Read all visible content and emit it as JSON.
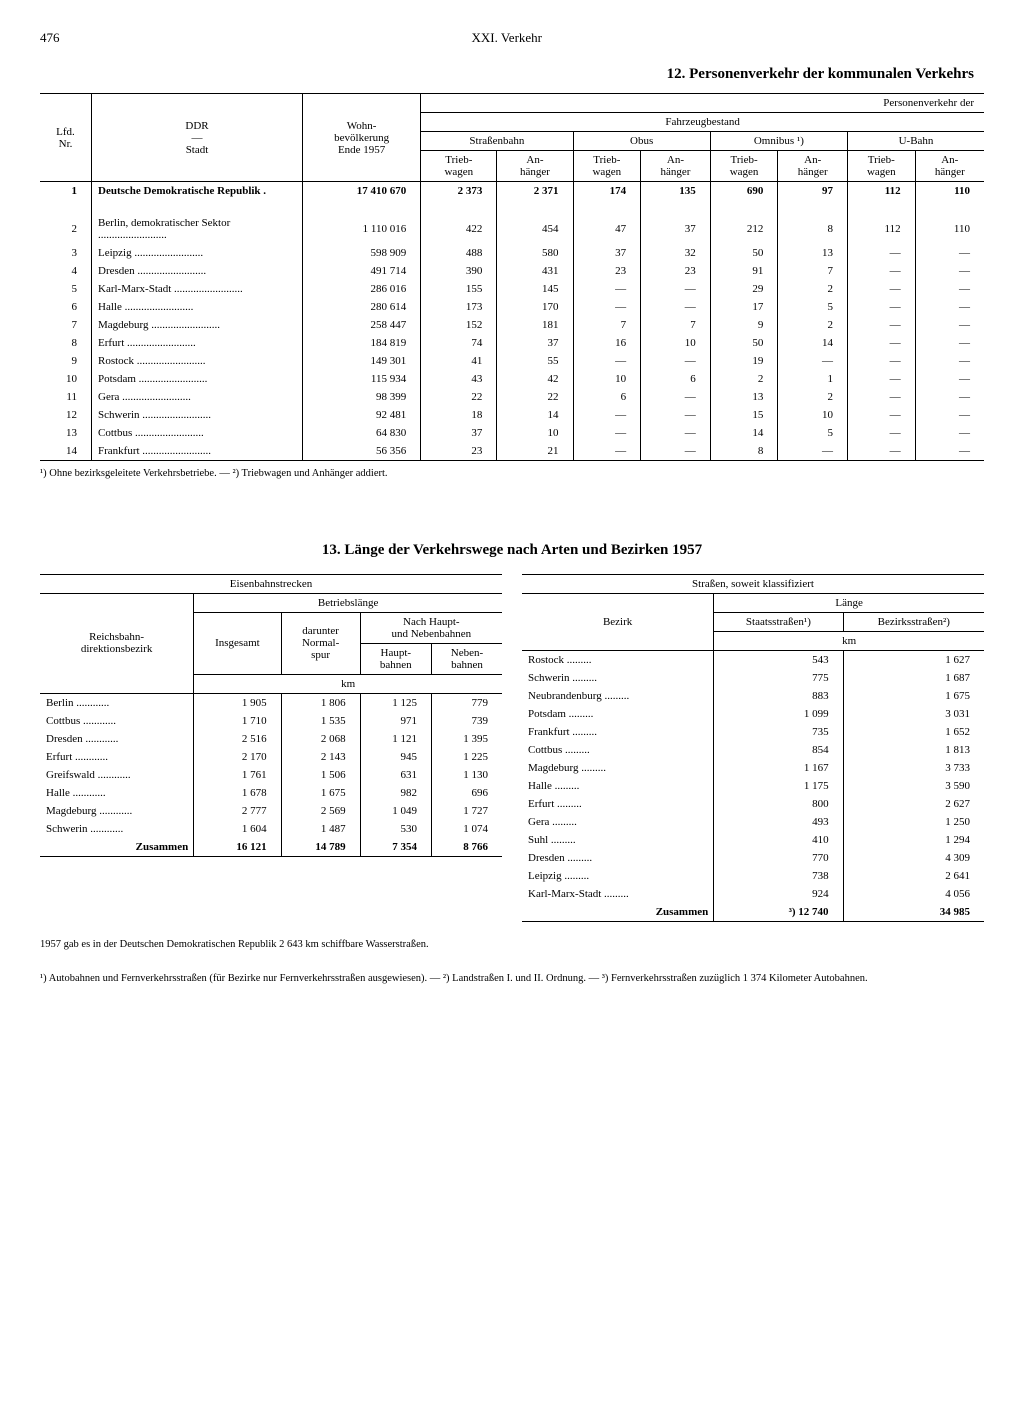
{
  "page_number": "476",
  "chapter": "XXI. Verkehr",
  "section12": {
    "title": "12. Personenverkehr der kommunalen Verkehrs",
    "col_headers": {
      "lfd": "Lfd.\nNr.",
      "ddr_stadt_top": "DDR",
      "ddr_stadt_bottom": "Stadt",
      "wohn": "Wohn-\nbevölkerung\nEnde 1957",
      "pv": "Personenverkehr der",
      "fahrzeug": "Fahrzeugbestand",
      "strassenbahn": "Straßenbahn",
      "obus": "Obus",
      "omnibus": "Omnibus ¹)",
      "ubahn": "U-Bahn",
      "trieb": "Trieb-\nwagen",
      "an": "An-\nhänger"
    },
    "rows": [
      {
        "n": "1",
        "city": "Deutsche Demokratische Republik .",
        "pop": "17 410 670",
        "sb_t": "2 373",
        "sb_a": "2 371",
        "ob_t": "174",
        "ob_a": "135",
        "om_t": "690",
        "om_a": "97",
        "ub_t": "112",
        "ub_a": "110",
        "bold": true
      },
      {
        "n": "2",
        "city": "Berlin, demokratischer Sektor",
        "pop": "1 110 016",
        "sb_t": "422",
        "sb_a": "454",
        "ob_t": "47",
        "ob_a": "37",
        "om_t": "212",
        "om_a": "8",
        "ub_t": "112",
        "ub_a": "110"
      },
      {
        "n": "3",
        "city": "Leipzig",
        "pop": "598 909",
        "sb_t": "488",
        "sb_a": "580",
        "ob_t": "37",
        "ob_a": "32",
        "om_t": "50",
        "om_a": "13",
        "ub_t": "—",
        "ub_a": "—"
      },
      {
        "n": "4",
        "city": "Dresden",
        "pop": "491 714",
        "sb_t": "390",
        "sb_a": "431",
        "ob_t": "23",
        "ob_a": "23",
        "om_t": "91",
        "om_a": "7",
        "ub_t": "—",
        "ub_a": "—"
      },
      {
        "n": "5",
        "city": "Karl-Marx-Stadt",
        "pop": "286 016",
        "sb_t": "155",
        "sb_a": "145",
        "ob_t": "—",
        "ob_a": "—",
        "om_t": "29",
        "om_a": "2",
        "ub_t": "—",
        "ub_a": "—"
      },
      {
        "n": "6",
        "city": "Halle",
        "pop": "280 614",
        "sb_t": "173",
        "sb_a": "170",
        "ob_t": "—",
        "ob_a": "—",
        "om_t": "17",
        "om_a": "5",
        "ub_t": "—",
        "ub_a": "—"
      },
      {
        "n": "7",
        "city": "Magdeburg",
        "pop": "258 447",
        "sb_t": "152",
        "sb_a": "181",
        "ob_t": "7",
        "ob_a": "7",
        "om_t": "9",
        "om_a": "2",
        "ub_t": "—",
        "ub_a": "—"
      },
      {
        "n": "8",
        "city": "Erfurt",
        "pop": "184 819",
        "sb_t": "74",
        "sb_a": "37",
        "ob_t": "16",
        "ob_a": "10",
        "om_t": "50",
        "om_a": "14",
        "ub_t": "—",
        "ub_a": "—"
      },
      {
        "n": "9",
        "city": "Rostock",
        "pop": "149 301",
        "sb_t": "41",
        "sb_a": "55",
        "ob_t": "—",
        "ob_a": "—",
        "om_t": "19",
        "om_a": "—",
        "ub_t": "—",
        "ub_a": "—"
      },
      {
        "n": "10",
        "city": "Potsdam",
        "pop": "115 934",
        "sb_t": "43",
        "sb_a": "42",
        "ob_t": "10",
        "ob_a": "6",
        "om_t": "2",
        "om_a": "1",
        "ub_t": "—",
        "ub_a": "—"
      },
      {
        "n": "11",
        "city": "Gera",
        "pop": "98 399",
        "sb_t": "22",
        "sb_a": "22",
        "ob_t": "6",
        "ob_a": "—",
        "om_t": "13",
        "om_a": "2",
        "ub_t": "—",
        "ub_a": "—"
      },
      {
        "n": "12",
        "city": "Schwerin",
        "pop": "92 481",
        "sb_t": "18",
        "sb_a": "14",
        "ob_t": "—",
        "ob_a": "—",
        "om_t": "15",
        "om_a": "10",
        "ub_t": "—",
        "ub_a": "—"
      },
      {
        "n": "13",
        "city": "Cottbus",
        "pop": "64 830",
        "sb_t": "37",
        "sb_a": "10",
        "ob_t": "—",
        "ob_a": "—",
        "om_t": "14",
        "om_a": "5",
        "ub_t": "—",
        "ub_a": "—"
      },
      {
        "n": "14",
        "city": "Frankfurt",
        "pop": "56 356",
        "sb_t": "23",
        "sb_a": "21",
        "ob_t": "—",
        "ob_a": "—",
        "om_t": "8",
        "om_a": "—",
        "ub_t": "—",
        "ub_a": "—"
      }
    ],
    "footnote": "¹) Ohne bezirksgeleitete Verkehrsbetriebe. — ²) Triebwagen und Anhänger addiert."
  },
  "section13": {
    "title": "13. Länge der Verkehrswege nach Arten und Bezirken 1957",
    "left": {
      "h_eisenbahn": "Eisenbahnstrecken",
      "h_betrieb": "Betriebslänge",
      "h_dir": "Reichsbahn-\ndirektionsbezirk",
      "h_ins": "Insgesamt",
      "h_normal": "darunter\nNormal-\nspur",
      "h_haupt_neben": "Nach Haupt-\nund Nebenbahnen",
      "h_haupt": "Haupt-\nbahnen",
      "h_neben": "Neben-\nbahnen",
      "h_km": "km",
      "rows": [
        {
          "b": "Berlin",
          "i": "1 905",
          "n": "1 806",
          "h": "1 125",
          "nb": "779"
        },
        {
          "b": "Cottbus",
          "i": "1 710",
          "n": "1 535",
          "h": "971",
          "nb": "739"
        },
        {
          "b": "Dresden",
          "i": "2 516",
          "n": "2 068",
          "h": "1 121",
          "nb": "1 395"
        },
        {
          "b": "Erfurt",
          "i": "2 170",
          "n": "2 143",
          "h": "945",
          "nb": "1 225"
        },
        {
          "b": "Greifswald",
          "i": "1 761",
          "n": "1 506",
          "h": "631",
          "nb": "1 130"
        },
        {
          "b": "Halle",
          "i": "1 678",
          "n": "1 675",
          "h": "982",
          "nb": "696"
        },
        {
          "b": "Magdeburg",
          "i": "2 777",
          "n": "2 569",
          "h": "1 049",
          "nb": "1 727"
        },
        {
          "b": "Schwerin",
          "i": "1 604",
          "n": "1 487",
          "h": "530",
          "nb": "1 074"
        }
      ],
      "sum_label": "Zusammen",
      "sum": {
        "i": "16 121",
        "n": "14 789",
        "h": "7 354",
        "nb": "8 766"
      }
    },
    "right": {
      "h_strassen": "Straßen, soweit klassifiziert",
      "h_laenge": "Länge",
      "h_bezirk": "Bezirk",
      "h_staat": "Staatsstraßen¹)",
      "h_bezirkstr": "Bezirksstraßen²)",
      "h_km": "km",
      "rows": [
        {
          "b": "Rostock",
          "s": "543",
          "bz": "1 627"
        },
        {
          "b": "Schwerin",
          "s": "775",
          "bz": "1 687"
        },
        {
          "b": "Neubrandenburg",
          "s": "883",
          "bz": "1 675"
        },
        {
          "b": "Potsdam",
          "s": "1 099",
          "bz": "3 031"
        },
        {
          "b": "Frankfurt",
          "s": "735",
          "bz": "1 652"
        },
        {
          "b": "Cottbus",
          "s": "854",
          "bz": "1 813"
        },
        {
          "b": "Magdeburg",
          "s": "1 167",
          "bz": "3 733"
        },
        {
          "b": "Halle",
          "s": "1 175",
          "bz": "3 590"
        },
        {
          "b": "Erfurt",
          "s": "800",
          "bz": "2 627"
        },
        {
          "b": "Gera",
          "s": "493",
          "bz": "1 250"
        },
        {
          "b": "Suhl",
          "s": "410",
          "bz": "1 294"
        },
        {
          "b": "Dresden",
          "s": "770",
          "bz": "4 309"
        },
        {
          "b": "Leipzig",
          "s": "738",
          "bz": "2 641"
        },
        {
          "b": "Karl-Marx-Stadt",
          "s": "924",
          "bz": "4 056"
        }
      ],
      "sum_label": "Zusammen",
      "sum": {
        "s": "³) 12 740",
        "bz": "34 985"
      }
    },
    "note_below": "1957 gab es in der Deutschen Demokratischen Republik 2 643 km schiffbare Wasserstraßen.",
    "footnote": "¹) Autobahnen und Fernverkehrsstraßen (für Bezirke nur Fernverkehrsstraßen ausgewiesen). — ²) Landstraßen I. und II. Ordnung. — ³) Fernverkehrsstraßen zuzüglich 1 374 Kilometer Autobahnen."
  }
}
